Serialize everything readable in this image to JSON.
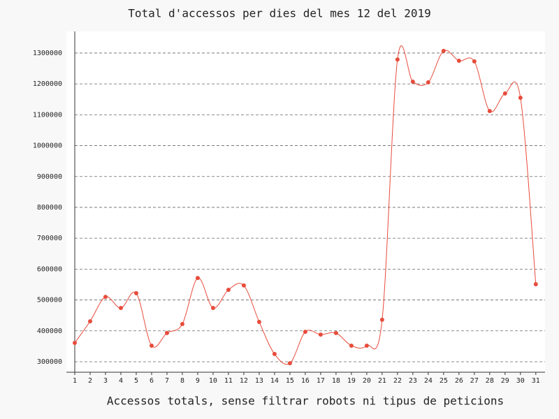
{
  "chart_data": {
    "type": "line",
    "title": "Total d'accessos per dies del mes 12 del 2019",
    "x_label": "Accessos totals, sense filtrar robots ni tipus de peticions",
    "x": [
      1,
      2,
      3,
      4,
      5,
      6,
      7,
      8,
      9,
      10,
      11,
      12,
      13,
      14,
      15,
      16,
      17,
      18,
      19,
      20,
      21,
      22,
      23,
      24,
      25,
      26,
      27,
      28,
      29,
      30,
      31
    ],
    "series": [
      {
        "color": "#e74c3c",
        "values": [
          361000,
          431000,
          510000,
          474000,
          522000,
          352000,
          393000,
          422000,
          571000,
          474000,
          533000,
          547000,
          429000,
          325000,
          295000,
          397000,
          388000,
          393000,
          352000,
          352000,
          436000,
          1279000,
          1207000,
          1205000,
          1307000,
          1275000,
          1273000,
          1112000,
          1169000,
          1155000,
          551000
        ]
      }
    ],
    "xlim": [
      1,
      31.6
    ],
    "xticks": [
      1,
      2,
      3,
      4,
      5,
      6,
      7,
      8,
      9,
      10,
      11,
      12,
      13,
      14,
      15,
      16,
      17,
      18,
      19,
      20,
      21,
      22,
      23,
      24,
      25,
      26,
      27,
      28,
      29,
      30,
      31
    ],
    "ylim": [
      266000,
      1370000
    ],
    "yticks": [
      300000,
      400000,
      500000,
      600000,
      700000,
      800000,
      900000,
      1000000,
      1100000,
      1200000,
      1300000
    ],
    "grid": true
  }
}
